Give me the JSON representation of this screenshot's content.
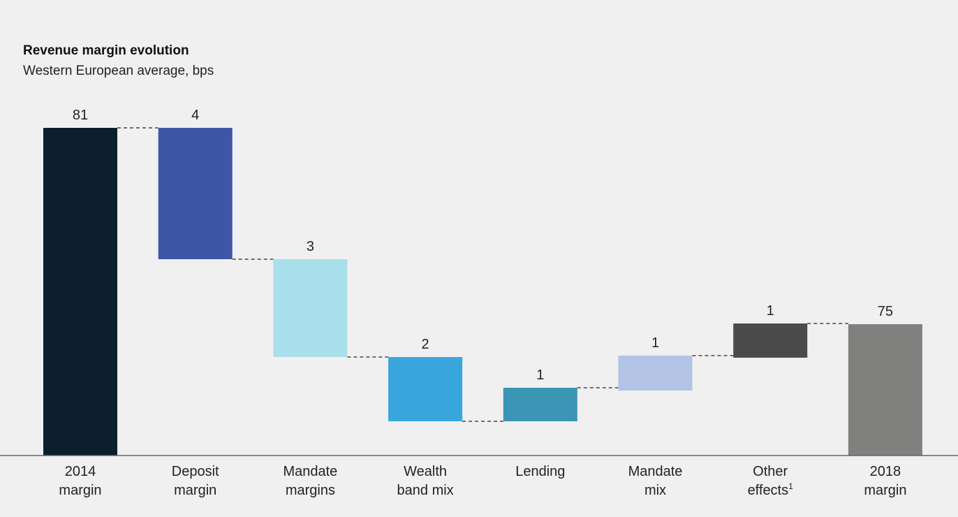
{
  "chart_data": {
    "type": "bar",
    "subtype": "waterfall",
    "title": "Revenue margin evolution",
    "subtitle": "Western European average, bps",
    "categories": [
      {
        "lines": [
          "2014",
          "margin"
        ],
        "sup": ""
      },
      {
        "lines": [
          "Deposit",
          "margin"
        ],
        "sup": ""
      },
      {
        "lines": [
          "Mandate",
          "margins"
        ],
        "sup": ""
      },
      {
        "lines": [
          "Wealth",
          "band mix"
        ],
        "sup": ""
      },
      {
        "lines": [
          "Lending"
        ],
        "sup": ""
      },
      {
        "lines": [
          "Mandate",
          "mix"
        ],
        "sup": ""
      },
      {
        "lines": [
          "Other",
          "effects"
        ],
        "sup": "1"
      },
      {
        "lines": [
          "2018",
          "margin"
        ],
        "sup": ""
      }
    ],
    "labels": [
      "81",
      "4",
      "3",
      "2",
      "1",
      "1",
      "1",
      "75"
    ],
    "bars": [
      {
        "kind": "total",
        "start": 0,
        "end": 81,
        "color": "#0b1f2d"
      },
      {
        "kind": "decrease",
        "start": 81,
        "end": 77,
        "color": "#3d57a6"
      },
      {
        "kind": "decrease",
        "start": 77,
        "end": 74,
        "color": "#a9dfea"
      },
      {
        "kind": "decrease",
        "start": 74,
        "end": 72,
        "color": "#39a7dd"
      },
      {
        "kind": "increase",
        "start": 72,
        "end": 73,
        "color": "#3b95b5"
      },
      {
        "kind": "increase",
        "start": 73,
        "end": 74,
        "color": "#b3c3e5"
      },
      {
        "kind": "increase",
        "start": 74,
        "end": 75,
        "color": "#4b4b4b"
      },
      {
        "kind": "total",
        "start": 0,
        "end": 75,
        "color": "#80807f"
      }
    ],
    "connectors": "dashed",
    "grid": false,
    "legend": "none"
  }
}
